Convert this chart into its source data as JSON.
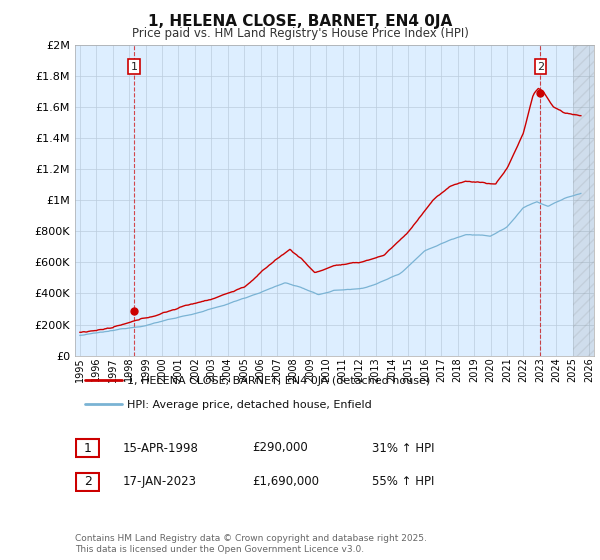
{
  "title": "1, HELENA CLOSE, BARNET, EN4 0JA",
  "subtitle": "Price paid vs. HM Land Registry's House Price Index (HPI)",
  "legend_line1": "1, HELENA CLOSE, BARNET, EN4 0JA (detached house)",
  "legend_line2": "HPI: Average price, detached house, Enfield",
  "sale1_label": "1",
  "sale1_date": "15-APR-1998",
  "sale1_price": "£290,000",
  "sale1_hpi": "31% ↑ HPI",
  "sale2_label": "2",
  "sale2_date": "17-JAN-2023",
  "sale2_price": "£1,690,000",
  "sale2_hpi": "55% ↑ HPI",
  "footer": "Contains HM Land Registry data © Crown copyright and database right 2025.\nThis data is licensed under the Open Government Licence v3.0.",
  "hpi_color": "#7ab3d4",
  "price_color": "#cc0000",
  "marker_color": "#cc0000",
  "bg_color": "#ffffff",
  "chart_bg": "#ddeeff",
  "grid_color": "#bbccdd",
  "ylim": [
    0,
    2000000
  ],
  "yticks": [
    0,
    200000,
    400000,
    600000,
    800000,
    1000000,
    1200000,
    1400000,
    1600000,
    1800000,
    2000000
  ],
  "sale1_x": 1998.29,
  "sale1_y": 290000,
  "sale2_x": 2023.04,
  "sale2_y": 1690000,
  "xmin": 1994.7,
  "xmax": 2026.3
}
